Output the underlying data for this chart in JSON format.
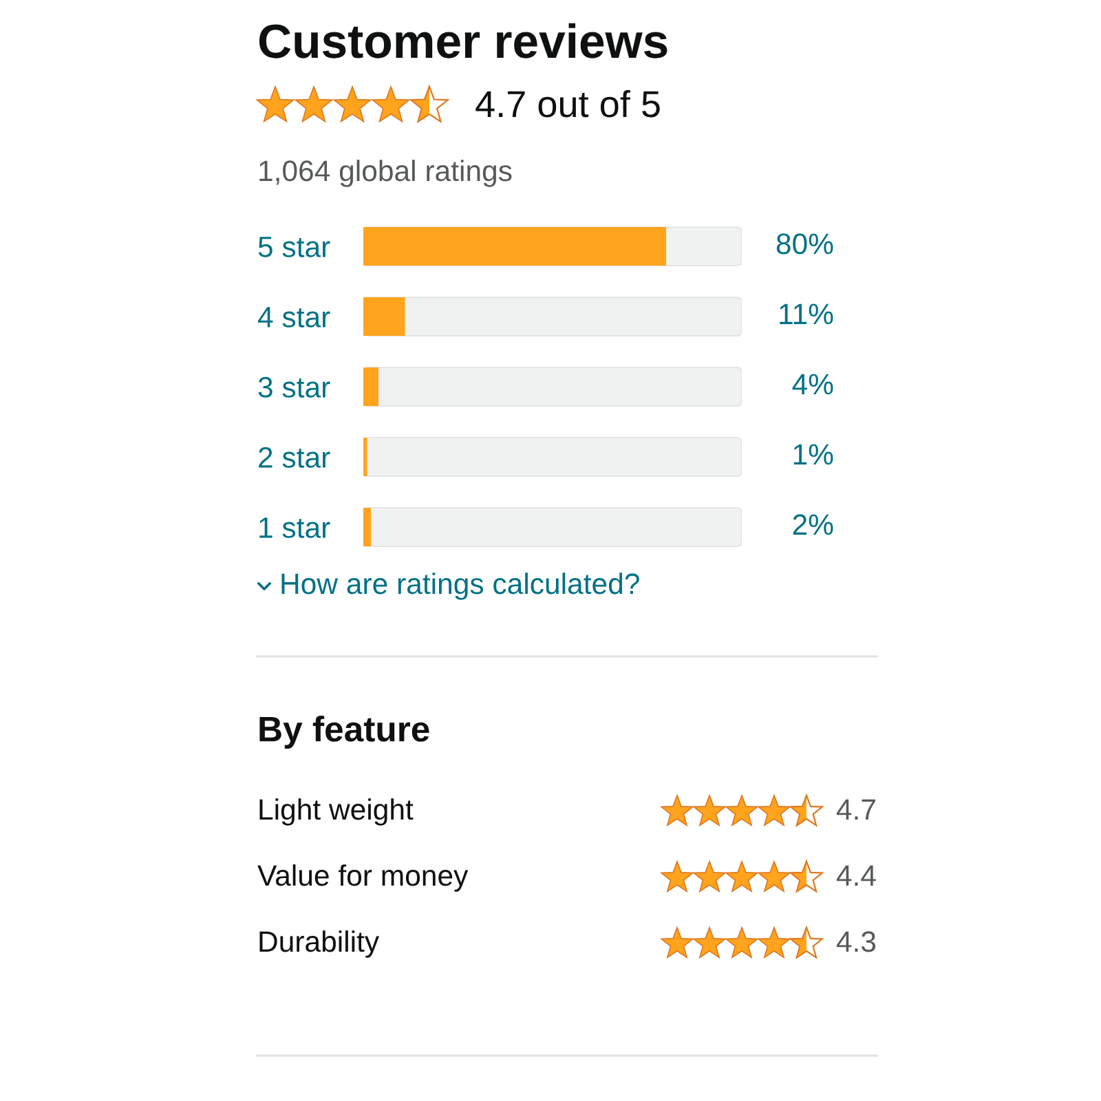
{
  "chart_data": [
    {
      "type": "bar",
      "orientation": "horizontal",
      "title": "Customer reviews",
      "subtitle": "4.7 out of 5",
      "annotations": [
        "1,064 global ratings",
        "How are ratings calculated?"
      ],
      "categories": [
        "5 star",
        "4 star",
        "3 star",
        "2 star",
        "1 star"
      ],
      "values": [
        80,
        11,
        4,
        1,
        2
      ],
      "color": "#ffa41c",
      "value_labels": [
        "80%",
        "11%",
        "4%",
        "1%",
        "2%"
      ],
      "xlim": [
        0,
        100
      ],
      "tick_labels": "y"
    },
    {
      "type": "other",
      "title": "By feature",
      "categories": [
        "Light weight",
        "Value for money",
        "Durability"
      ],
      "values": [
        4.7,
        4.4,
        4.3
      ],
      "data_labels": true
    }
  ]
}
